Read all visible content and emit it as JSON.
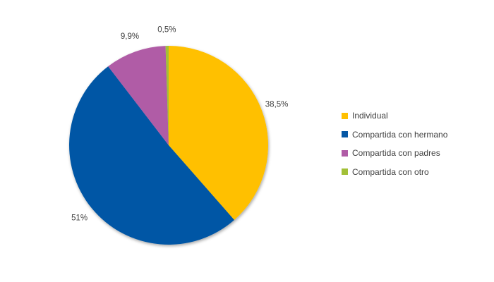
{
  "chart_data": {
    "type": "pie",
    "title": "",
    "categories": [
      "Individual",
      "Compartida con hermano",
      "Compartida con padres",
      "Compartida con otro"
    ],
    "values": [
      38.5,
      51,
      9.9,
      0.5
    ],
    "value_labels": [
      "38,5%",
      "51%",
      "9,9%",
      "0,5%"
    ],
    "colors": [
      "#FFC000",
      "#0557A5",
      "#B05CA6",
      "#A2C037"
    ],
    "start_angle_deg": 0,
    "direction": "clockwise",
    "legend_position": "right",
    "label_color": "#404040",
    "background_color": "#FFFFFF"
  },
  "legend": {
    "items": [
      {
        "label": "Individual"
      },
      {
        "label": "Compartida con hermano"
      },
      {
        "label": "Compartida con padres"
      },
      {
        "label": "Compartida con otro"
      }
    ]
  }
}
